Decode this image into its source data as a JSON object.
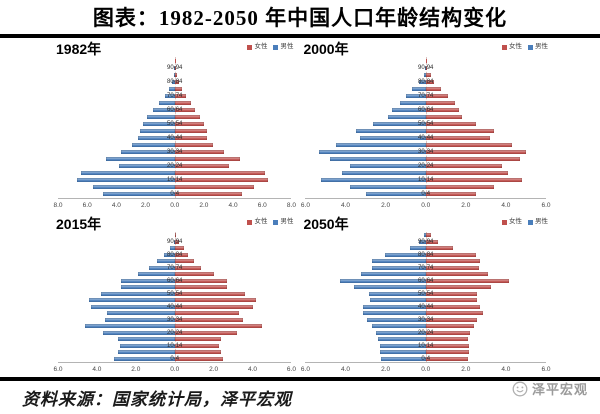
{
  "header": {
    "title": "图表：1982-2050 年中国人口年龄结构变化"
  },
  "legend": {
    "female": "女性",
    "male": "男性"
  },
  "colors": {
    "female_bar": "#c0504d",
    "male_bar": "#4a7ebb",
    "rule": "#000000"
  },
  "footer": {
    "source": "资料来源：国家统计局，泽平宏观",
    "logo_text": "泽平宏观"
  },
  "chart_data": [
    {
      "type": "bar",
      "title": "1982年",
      "orientation": "population-pyramid",
      "legend_position": "top-right",
      "xlim": 8.0,
      "x_ticks": [
        "8.0",
        "6.0",
        "4.0",
        "2.0",
        "0.0",
        "2.0",
        "4.0",
        "6.0",
        "8.0"
      ],
      "age_groups": [
        "0-4",
        "5-9",
        "10-14",
        "15-19",
        "20-24",
        "25-29",
        "30-34",
        "35-39",
        "40-44",
        "45-49",
        "50-54",
        "55-59",
        "60-64",
        "65-69",
        "70-74",
        "75-79",
        "80-84",
        "85-89",
        "90-94",
        "95+"
      ],
      "series": [
        {
          "name": "男性",
          "values": [
            4.9,
            5.6,
            6.7,
            6.4,
            3.8,
            4.7,
            3.7,
            2.9,
            2.5,
            2.4,
            2.2,
            1.9,
            1.5,
            1.1,
            0.7,
            0.4,
            0.2,
            0.08,
            0.03,
            0.01
          ]
        },
        {
          "name": "女性",
          "values": [
            4.6,
            5.4,
            6.4,
            6.2,
            3.7,
            4.5,
            3.4,
            2.6,
            2.2,
            2.2,
            2.0,
            1.7,
            1.4,
            1.1,
            0.8,
            0.5,
            0.3,
            0.15,
            0.06,
            0.02
          ]
        }
      ]
    },
    {
      "type": "bar",
      "title": "2000年",
      "orientation": "population-pyramid",
      "legend_position": "top-right",
      "xlim": 6.0,
      "x_ticks": [
        "6.0",
        "4.0",
        "2.0",
        "0.0",
        "2.0",
        "4.0",
        "6.0"
      ],
      "age_groups": [
        "0-4",
        "5-9",
        "10-14",
        "15-19",
        "20-24",
        "25-29",
        "30-34",
        "35-39",
        "40-44",
        "45-49",
        "50-54",
        "55-59",
        "60-64",
        "65-69",
        "70-74",
        "75-79",
        "80-84",
        "85-89",
        "90-94",
        "95+"
      ],
      "series": [
        {
          "name": "男性",
          "values": [
            3.0,
            3.8,
            5.2,
            4.2,
            3.8,
            4.8,
            5.3,
            4.5,
            3.3,
            3.5,
            2.65,
            1.9,
            1.7,
            1.3,
            1.0,
            0.7,
            0.35,
            0.1,
            0.02,
            0.01
          ]
        },
        {
          "name": "女性",
          "values": [
            2.5,
            3.4,
            4.8,
            4.1,
            3.8,
            4.7,
            5.0,
            4.3,
            3.2,
            3.4,
            2.5,
            1.8,
            1.65,
            1.45,
            1.1,
            0.75,
            0.4,
            0.25,
            0.08,
            0.03
          ]
        }
      ]
    },
    {
      "type": "bar",
      "title": "2015年",
      "orientation": "population-pyramid",
      "legend_position": "top-right",
      "xlim": 6.0,
      "x_ticks": [
        "6.0",
        "4.0",
        "2.0",
        "0.0",
        "2.0",
        "4.0",
        "6.0"
      ],
      "age_groups": [
        "0-4",
        "5-9",
        "10-14",
        "15-19",
        "20-24",
        "25-29",
        "30-34",
        "35-39",
        "40-44",
        "45-49",
        "50-54",
        "55-59",
        "60-64",
        "65-69",
        "70-74",
        "75-79",
        "80-84",
        "85-89",
        "90-94",
        "95+"
      ],
      "series": [
        {
          "name": "男性",
          "values": [
            3.1,
            2.9,
            2.8,
            2.9,
            3.7,
            4.6,
            3.6,
            3.5,
            4.3,
            4.4,
            3.8,
            2.75,
            2.75,
            1.9,
            1.3,
            0.9,
            0.55,
            0.25,
            0.05,
            0.01
          ]
        },
        {
          "name": "女性",
          "values": [
            2.5,
            2.4,
            2.3,
            2.4,
            3.2,
            4.5,
            3.5,
            3.3,
            4.0,
            4.2,
            3.6,
            2.7,
            2.7,
            2.0,
            1.35,
            1.0,
            0.7,
            0.5,
            0.2,
            0.05
          ]
        }
      ]
    },
    {
      "type": "bar",
      "title": "2050年",
      "orientation": "population-pyramid",
      "legend_position": "top-right",
      "xlim": 6.0,
      "x_ticks": [
        "6.0",
        "4.0",
        "2.0",
        "0.0",
        "2.0",
        "4.0",
        "6.0"
      ],
      "age_groups": [
        "0-4",
        "5-9",
        "10-14",
        "15-19",
        "20-24",
        "25-29",
        "30-34",
        "35-39",
        "40-44",
        "45-49",
        "50-54",
        "55-59",
        "60-64",
        "65-69",
        "70-74",
        "75-79",
        "80-84",
        "85-89",
        "90-94",
        "95+"
      ],
      "series": [
        {
          "name": "男性",
          "values": [
            2.25,
            2.3,
            2.3,
            2.4,
            2.5,
            2.7,
            2.95,
            3.15,
            3.15,
            2.8,
            2.85,
            3.6,
            4.3,
            3.25,
            2.7,
            2.7,
            2.05,
            0.8,
            0.35,
            0.1
          ]
        },
        {
          "name": "女性",
          "values": [
            2.1,
            2.15,
            2.15,
            2.1,
            2.2,
            2.4,
            2.55,
            2.85,
            2.7,
            2.55,
            2.55,
            3.25,
            4.15,
            3.1,
            2.65,
            2.7,
            2.5,
            1.35,
            0.6,
            0.25
          ]
        }
      ]
    }
  ]
}
